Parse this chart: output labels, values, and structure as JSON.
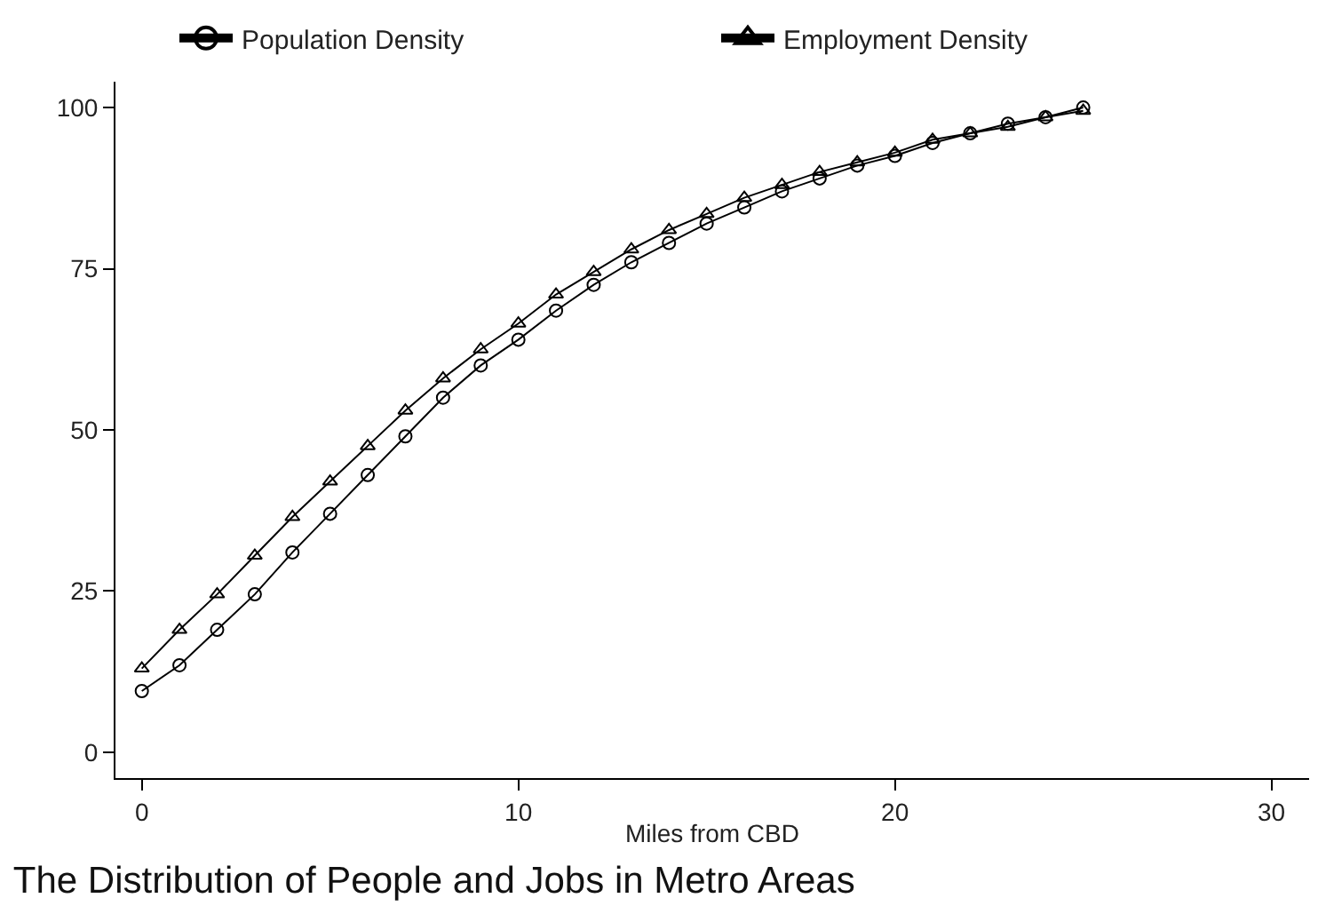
{
  "chart_data": {
    "type": "line",
    "title": "The Distribution of People and Jobs in Metro Areas",
    "xlabel": "Miles from CBD",
    "x": [
      0,
      1,
      2,
      3,
      4,
      5,
      6,
      7,
      8,
      9,
      10,
      11,
      12,
      13,
      14,
      15,
      16,
      17,
      18,
      19,
      20,
      21,
      22,
      23,
      24,
      25
    ],
    "series": [
      {
        "name": "Population Density",
        "color": "#000000",
        "marker": "circle",
        "values": [
          9.5,
          13.5,
          19,
          24.5,
          31,
          37,
          43,
          49,
          55,
          60,
          64,
          68.5,
          72.5,
          76,
          79,
          82,
          84.5,
          87,
          89,
          91,
          92.5,
          94.5,
          96,
          97.5,
          98.5,
          100
        ]
      },
      {
        "name": "Employment Density",
        "color": "#000000",
        "marker": "triangle",
        "values": [
          13,
          19,
          24.5,
          30.5,
          36.5,
          42,
          47.5,
          53,
          58,
          62.5,
          66.5,
          71,
          74.5,
          78,
          81,
          83.5,
          86,
          88,
          90,
          91.5,
          93,
          95,
          96,
          97,
          98.5,
          99.5
        ]
      }
    ],
    "xlim": [
      -0.7,
      31
    ],
    "xticks": [
      0,
      10,
      20,
      30
    ],
    "ylim": [
      -4,
      104
    ],
    "yticks": [
      0,
      25,
      50,
      75,
      100
    ],
    "legend": "top",
    "line_style": "solid"
  }
}
